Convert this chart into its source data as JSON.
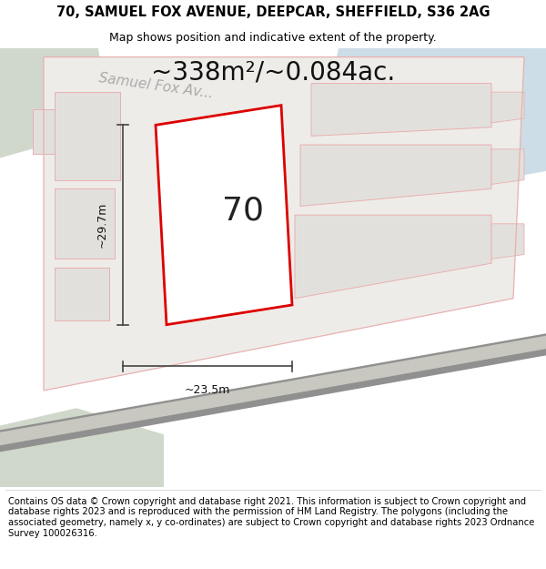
{
  "title_line1": "70, SAMUEL FOX AVENUE, DEEPCAR, SHEFFIELD, S36 2AG",
  "title_line2": "Map shows position and indicative extent of the property.",
  "area_text": "~338m²/~0.084ac.",
  "label_number": "70",
  "dim_height": "~29.7m",
  "dim_width": "~23.5m",
  "street_label": "Samuel Fox Av...",
  "footer_text": "Contains OS data © Crown copyright and database right 2021. This information is subject to Crown copyright and database rights 2023 and is reproduced with the permission of HM Land Registry. The polygons (including the associated geometry, namely x, y co-ordinates) are subject to Crown copyright and database rights 2023 Ordnance Survey 100026316.",
  "map_bg": "#f2f0ee",
  "highlight_stroke": "#dd0000",
  "highlight_fill": "#ffffff",
  "water_color": "#ccdde8",
  "green_color": "#d0d8cc",
  "green2_color": "#dce4d8",
  "building_fill": "#e2e0dc",
  "building_stroke": "#e8b0b0",
  "road_dark": "#aaaaaa",
  "road_light": "#e8e6e0",
  "dim_line_color": "#444444",
  "street_text_color": "#aaaaaa",
  "title_fontsize": 10.5,
  "subtitle_fontsize": 9,
  "area_fontsize": 20,
  "label_fontsize": 26,
  "dim_fontsize": 9,
  "footer_fontsize": 7.2,
  "street_fontsize": 11
}
